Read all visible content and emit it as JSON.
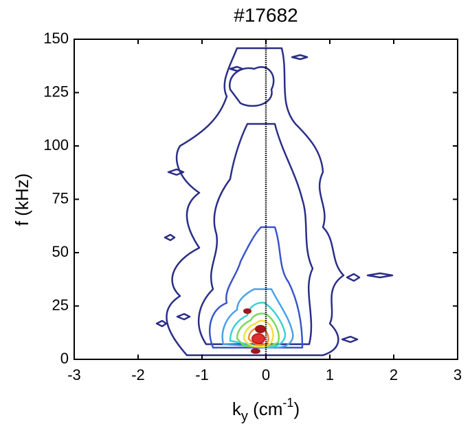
{
  "chart_data": {
    "type": "contour",
    "title": "#17682",
    "xlabel": {
      "base": "k",
      "sub": "y",
      "mid": " (cm",
      "sup": "-1",
      "end": ")"
    },
    "ylabel": "f (kHz)",
    "xlim": [
      -3,
      3
    ],
    "xticks": [
      -3,
      -2,
      -1,
      0,
      1,
      2,
      3
    ],
    "ylim": [
      0,
      150
    ],
    "yticks": [
      0,
      25,
      50,
      75,
      100,
      125,
      150
    ],
    "zero_line": true
  }
}
